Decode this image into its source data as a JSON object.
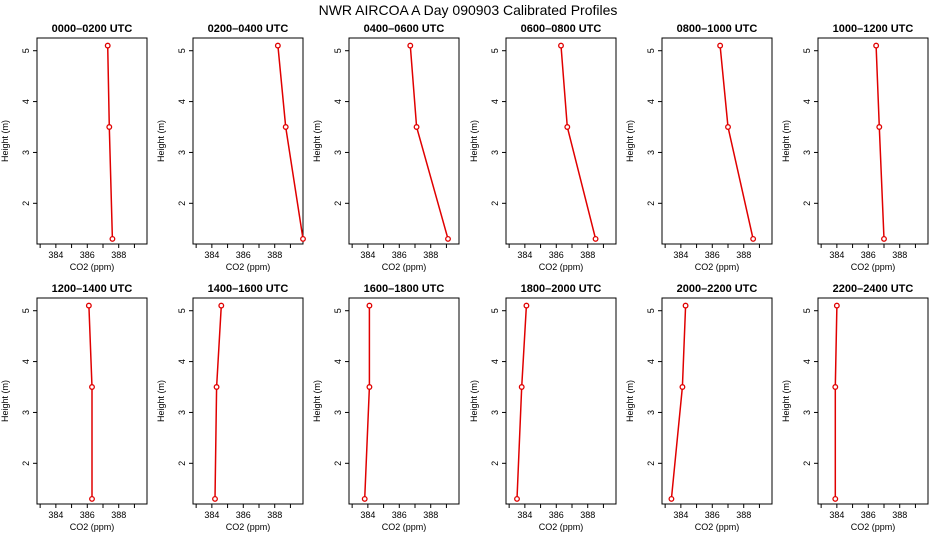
{
  "figure_title": "NWR AIRCOA A  Day 090903  Calibrated Profiles",
  "chart_data": {
    "type": "line",
    "title": "NWR AIRCOA A  Day 090903  Calibrated Profiles",
    "xlabel": "CO2 (ppm)",
    "ylabel": "Height (m)",
    "xlim": [
      382.8,
      389.8
    ],
    "ylim": [
      1.2,
      5.25
    ],
    "x_ticks": [
      384,
      386,
      388
    ],
    "y_ticks": [
      2,
      3,
      4,
      5
    ],
    "heights": [
      5.1,
      3.5,
      1.3
    ],
    "panels": [
      {
        "title": "0000–0200 UTC",
        "co2": [
          387.3,
          387.4,
          387.6
        ]
      },
      {
        "title": "0200–0400 UTC",
        "co2": [
          388.2,
          388.7,
          389.8
        ]
      },
      {
        "title": "0400–0600 UTC",
        "co2": [
          386.7,
          387.1,
          389.1
        ]
      },
      {
        "title": "0600–0800 UTC",
        "co2": [
          386.3,
          386.7,
          388.5
        ]
      },
      {
        "title": "0800–1000 UTC",
        "co2": [
          386.5,
          387.0,
          388.6
        ]
      },
      {
        "title": "1000–1200 UTC",
        "co2": [
          386.5,
          386.7,
          387.0
        ]
      },
      {
        "title": "1200–1400 UTC",
        "co2": [
          386.1,
          386.3,
          386.3
        ]
      },
      {
        "title": "1400–1600 UTC",
        "co2": [
          384.6,
          384.3,
          384.2
        ]
      },
      {
        "title": "1600–1800 UTC",
        "co2": [
          384.1,
          384.1,
          383.8
        ]
      },
      {
        "title": "1800–2000 UTC",
        "co2": [
          384.1,
          383.8,
          383.5
        ]
      },
      {
        "title": "2000–2200 UTC",
        "co2": [
          384.3,
          384.1,
          383.4
        ]
      },
      {
        "title": "2200–2400 UTC",
        "co2": [
          384.0,
          383.9,
          383.9
        ]
      }
    ]
  }
}
